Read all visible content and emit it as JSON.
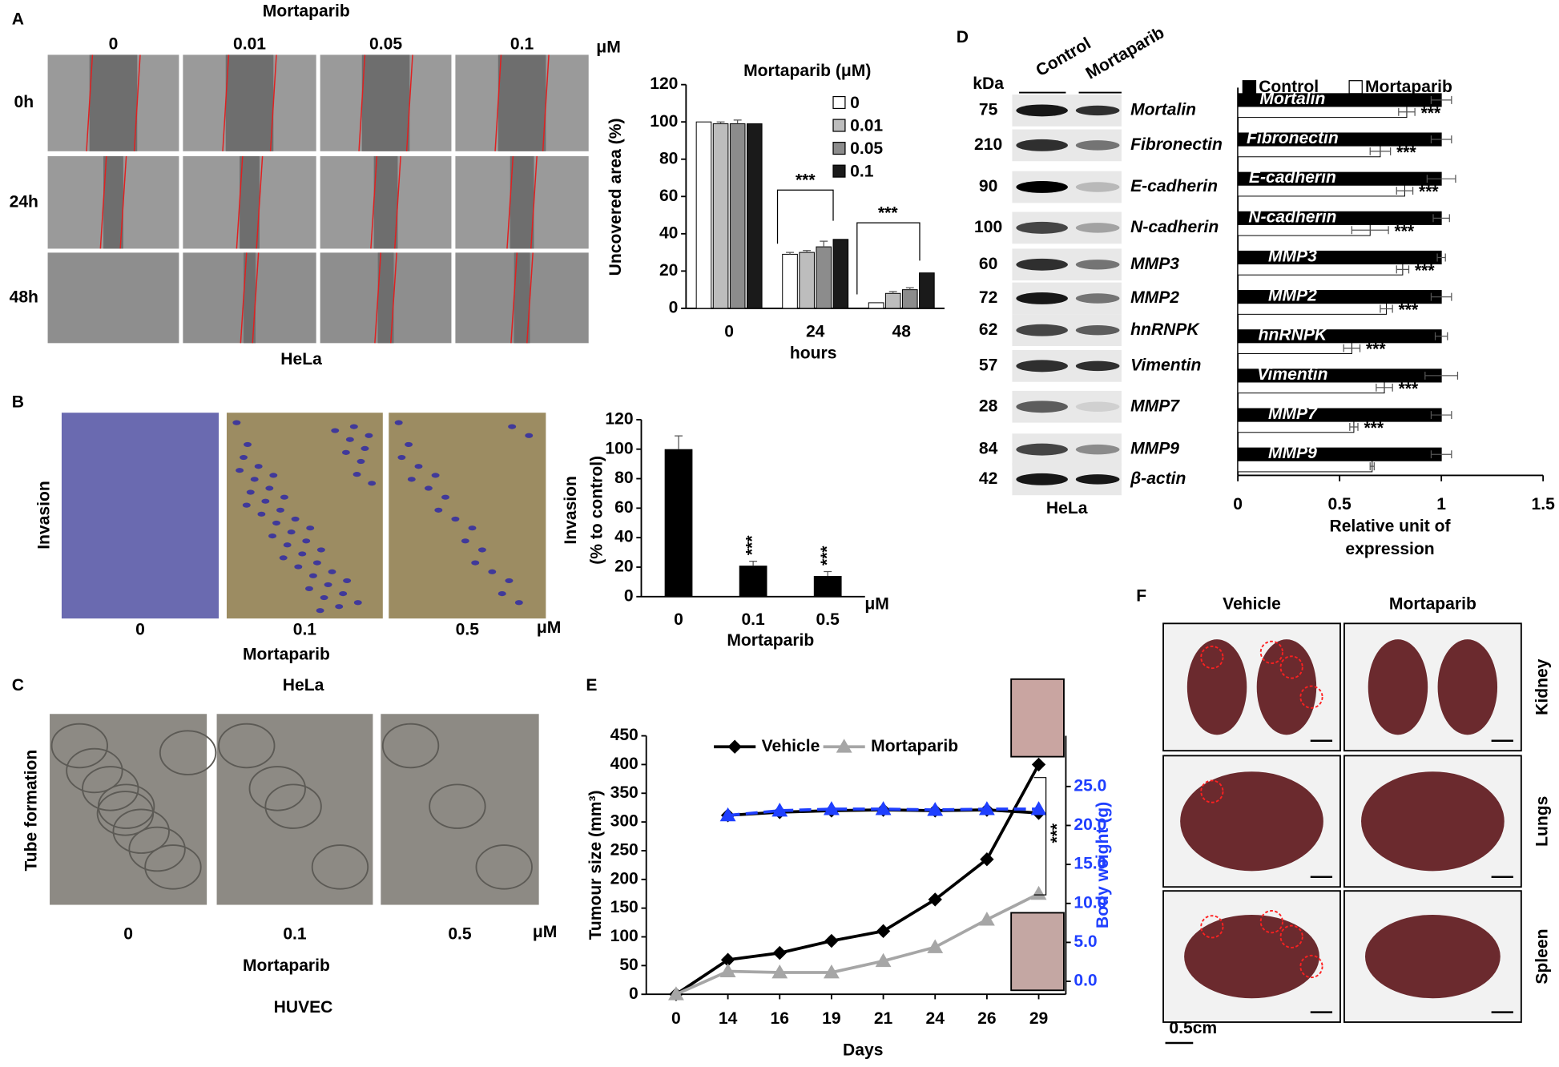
{
  "figure": {
    "panels": [
      "A",
      "B",
      "C",
      "D",
      "E",
      "F"
    ],
    "A": {
      "treatment": "Mortaparib",
      "doses": [
        "0",
        "0.01",
        "0.05",
        "0.1"
      ],
      "unit": "μM",
      "times": [
        "0h",
        "24h",
        "48h"
      ],
      "cell": "HeLa"
    },
    "B": {
      "assay": "Invasion",
      "doses": [
        "0",
        "0.1",
        "0.5"
      ],
      "unit": "μM",
      "treatment": "Mortaparib",
      "cell": "HeLa"
    },
    "C": {
      "assay": "Tube formation",
      "doses": [
        "0",
        "0.1",
        "0.5"
      ],
      "unit": "μM",
      "treatment": "Mortaparib",
      "cell": "HUVEC"
    },
    "D": {
      "kda_label": "kDa",
      "lanes": [
        "Control",
        "Mortaparib"
      ],
      "kda": [
        "75",
        "210",
        "90",
        "100",
        "60",
        "72",
        "62",
        "57",
        "28",
        "84",
        "42"
      ],
      "proteins": [
        "Mortalin",
        "Fibronectin",
        "E-cadherin",
        "N-cadherin",
        "MMP3",
        "MMP2",
        "hnRNPK",
        "Vimentin",
        "MMP7",
        "MMP9",
        "β-actin"
      ],
      "cell": "HeLa"
    },
    "F": {
      "groups": [
        "Vehicle",
        "Mortaparib"
      ],
      "organs": [
        "Kidney",
        "Lungs",
        "Spleen"
      ],
      "scale": "0.5cm"
    }
  },
  "chart_data": [
    {
      "type": "bar",
      "title": "Mortaparib (μM)",
      "ylabel": "Uncovered area  (%)",
      "xlabel": "hours",
      "categories": [
        "0",
        "24",
        "48"
      ],
      "series": [
        {
          "name": "0",
          "color": "#ffffff",
          "values": [
            100,
            29,
            3
          ],
          "errors": [
            0,
            1,
            0
          ]
        },
        {
          "name": "0.01",
          "color": "#bdbdbd",
          "values": [
            99,
            30,
            8
          ],
          "errors": [
            1,
            1,
            1
          ]
        },
        {
          "name": "0.05",
          "color": "#8c8c8c",
          "values": [
            99,
            33,
            10
          ],
          "errors": [
            2,
            3,
            1
          ]
        },
        {
          "name": "0.1",
          "color": "#1a1a1a",
          "values": [
            99,
            37,
            19
          ],
          "errors": [
            0,
            0,
            0
          ]
        }
      ],
      "ylim": [
        0,
        120
      ],
      "yticks": [
        0,
        20,
        40,
        60,
        80,
        100,
        120
      ],
      "annotations": [
        "***",
        "***"
      ]
    },
    {
      "type": "bar",
      "ylabel": [
        "Invasion",
        "(% to control)"
      ],
      "xlabel": "Mortaparib",
      "unit": "μM",
      "categories": [
        "0",
        "0.1",
        "0.5"
      ],
      "values": [
        100,
        21,
        14
      ],
      "errors": [
        9,
        3,
        3
      ],
      "color": "#000000",
      "ylim": [
        0,
        120
      ],
      "yticks": [
        0,
        20,
        40,
        60,
        80,
        100,
        120
      ],
      "annotations": [
        "***",
        "***"
      ]
    },
    {
      "type": "hbar",
      "legend": "top",
      "categories": [
        "Mortalin",
        "Fibronectin",
        "E-cadherin",
        "N-cadherin",
        "MMP3",
        "MMP2",
        "hnRNPK",
        "Vimentin",
        "MMP7",
        "MMP9"
      ],
      "series": [
        {
          "name": "Control",
          "color": "#000000",
          "values": [
            1,
            1,
            1,
            1,
            1,
            1,
            1,
            1,
            1,
            1
          ],
          "errors": [
            0.05,
            0.05,
            0.07,
            0.04,
            0.02,
            0.05,
            0.03,
            0.08,
            0.05,
            0.05
          ]
        },
        {
          "name": "Mortaparib",
          "color": "#ffffff",
          "values": [
            0.83,
            0.7,
            0.82,
            0.65,
            0.81,
            0.73,
            0.56,
            0.72,
            0.57,
            0.66
          ],
          "errors": [
            0.04,
            0.05,
            0.04,
            0.09,
            0.03,
            0.03,
            0.04,
            0.04,
            0.02,
            0.01
          ]
        }
      ],
      "xlim": [
        0,
        1.5
      ],
      "xticks": [
        0,
        0.5,
        1,
        1.5
      ],
      "xlabel": [
        "Relative unit of",
        "expression"
      ],
      "annotations": [
        "***",
        "***",
        "***",
        "***",
        "***",
        "***",
        "***",
        "***",
        "***"
      ]
    },
    {
      "type": "line",
      "xlabel": "Days",
      "ylabel": "Tumour size (mm³)",
      "y2label": "Body weight (g)",
      "categories": [
        "0",
        "14",
        "16",
        "19",
        "21",
        "24",
        "26",
        "29"
      ],
      "series": [
        {
          "name": "Vehicle",
          "color": "#000000",
          "marker": "diamond",
          "values": [
            0,
            60,
            72,
            93,
            110,
            165,
            235,
            400
          ]
        },
        {
          "name": "Mortaparib",
          "color": "#a6a6a6",
          "marker": "triangle",
          "values": [
            0,
            40,
            38,
            38,
            58,
            82,
            130,
            175
          ]
        },
        {
          "axis": "y2",
          "color": "#000000",
          "marker": "diamond",
          "values": [
            null,
            21.3,
            21.7,
            21.9,
            22.0,
            21.9,
            22.0,
            21.6
          ]
        },
        {
          "axis": "y2",
          "color": "#1f3fff",
          "marker": "triangle",
          "dash": true,
          "values": [
            null,
            21.3,
            21.9,
            22.1,
            22.1,
            22.0,
            22.1,
            22.1
          ]
        }
      ],
      "ylim": [
        0,
        450
      ],
      "yticks": [
        0,
        50,
        100,
        150,
        200,
        250,
        300,
        350,
        400,
        450
      ],
      "y2lim": [
        -1.66,
        31.5
      ],
      "y2ticks": [
        {
          "value": 0,
          "label": "0.0"
        },
        {
          "value": 5,
          "label": "5.0"
        },
        {
          "value": 10,
          "label": "10.0"
        },
        {
          "value": 15,
          "label": "15.0"
        },
        {
          "value": 20,
          "label": "20.0"
        },
        {
          "value": 25,
          "label": "25.0"
        }
      ],
      "annotations": [
        "***"
      ]
    }
  ]
}
